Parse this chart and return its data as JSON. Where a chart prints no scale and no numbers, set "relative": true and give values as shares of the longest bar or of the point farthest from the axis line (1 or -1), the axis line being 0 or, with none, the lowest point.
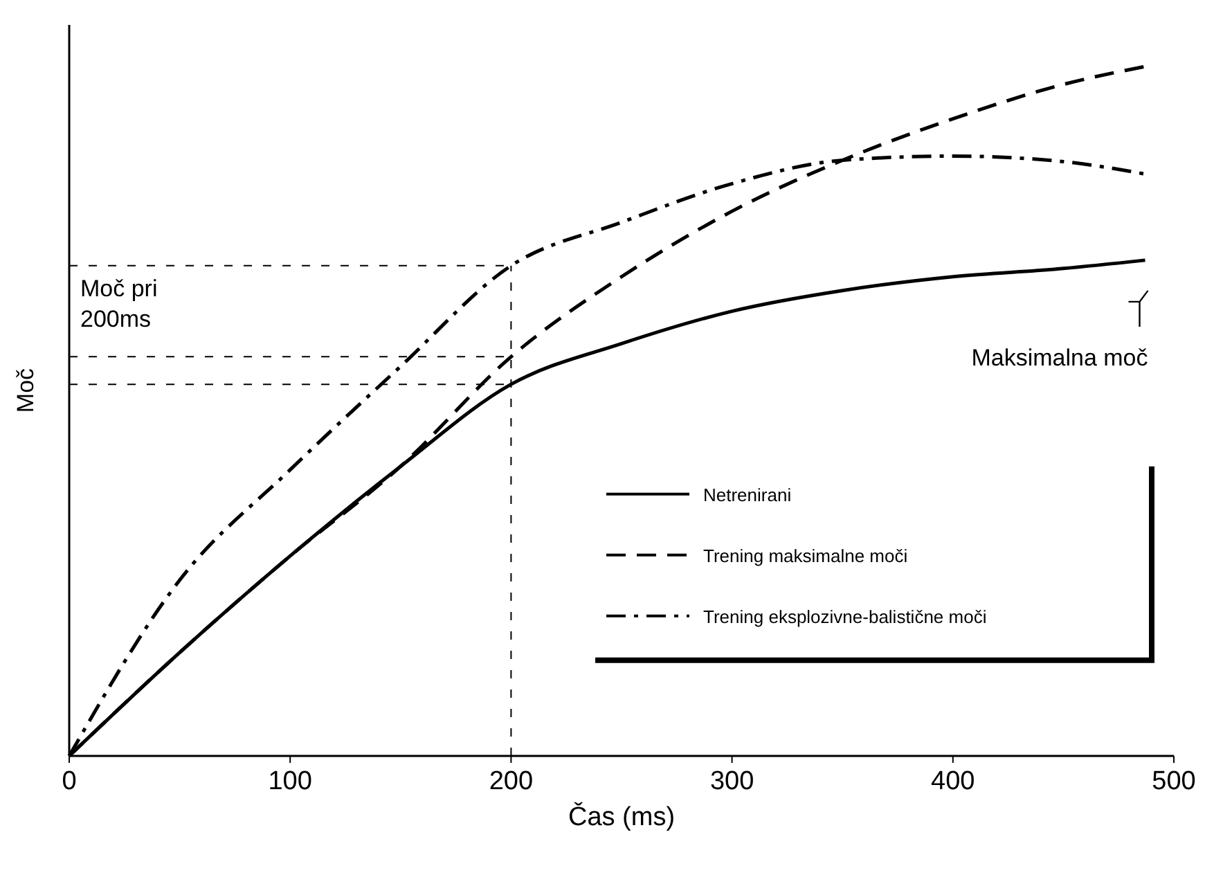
{
  "chart_data": {
    "type": "line",
    "relative": true,
    "xlabel": "Čas (ms)",
    "ylabel": "Moč",
    "xlim": [
      0,
      500
    ],
    "xticks": [
      0,
      100,
      200,
      300,
      400,
      500
    ],
    "grid": false,
    "legend": "right",
    "marker": "none",
    "series": [
      {
        "name": "Netrenirani",
        "color": "#000000",
        "line_style": "solid",
        "x": [
          0,
          50,
          100,
          150,
          200,
          250,
          300,
          350,
          400,
          450,
          487
        ],
        "values": [
          0,
          0.15,
          0.29,
          0.42,
          0.539,
          0.598,
          0.645,
          0.675,
          0.695,
          0.707,
          0.719
        ]
      },
      {
        "name": "Trening maksimalne  moči",
        "color": "#000000",
        "line_style": "dashed",
        "x": [
          0,
          50,
          100,
          150,
          200,
          250,
          300,
          350,
          400,
          450,
          487
        ],
        "values": [
          0,
          0.15,
          0.29,
          0.42,
          0.579,
          0.695,
          0.79,
          0.864,
          0.924,
          0.974,
          1
        ]
      },
      {
        "name": "Trening eksplozivne-balistične moči",
        "color": "#000000",
        "line_style": "dashdot",
        "x": [
          0,
          50,
          100,
          150,
          200,
          250,
          300,
          350,
          400,
          450,
          487
        ],
        "values": [
          0,
          0.255,
          0.415,
          0.565,
          0.711,
          0.774,
          0.83,
          0.864,
          0.87,
          0.862,
          0.844
        ]
      }
    ],
    "ref_lines": [
      {
        "axis": "x",
        "value": 200,
        "line_style": "dashed"
      },
      {
        "axis": "y",
        "value": 0.711,
        "line_style": "dashed"
      },
      {
        "axis": "y",
        "value": 0.579,
        "line_style": "dashed"
      },
      {
        "axis": "y",
        "value": 0.539,
        "line_style": "dashed"
      }
    ],
    "annotations": [
      "Moč pri 200ms",
      "Maksimalna moč"
    ]
  }
}
